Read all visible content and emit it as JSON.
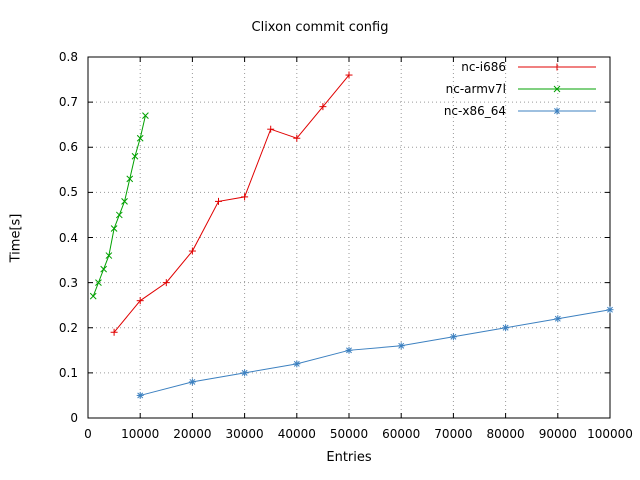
{
  "chart_data": {
    "type": "line",
    "title": "Clixon commit config",
    "xlabel": "Entries",
    "ylabel": "Time[s]",
    "xlim": [
      0,
      100000
    ],
    "ylim": [
      0,
      0.8
    ],
    "xticks": [
      0,
      10000,
      20000,
      30000,
      40000,
      50000,
      60000,
      70000,
      80000,
      90000,
      100000
    ],
    "yticks": [
      0,
      0.1,
      0.2,
      0.3,
      0.4,
      0.5,
      0.6,
      0.7,
      0.8
    ],
    "grid": "dotted",
    "legend_position": "top-right-inside",
    "colors": {
      "grid": "#9a9a9a",
      "border": "#000000",
      "background": "#ffffff"
    },
    "series": [
      {
        "name": "nc-i686",
        "color": "#e00000",
        "marker": "plus",
        "points": [
          [
            5000,
            0.19
          ],
          [
            10000,
            0.26
          ],
          [
            15000,
            0.3
          ],
          [
            20000,
            0.37
          ],
          [
            25000,
            0.48
          ],
          [
            30000,
            0.49
          ],
          [
            35000,
            0.64
          ],
          [
            40000,
            0.62
          ],
          [
            45000,
            0.69
          ],
          [
            50000,
            0.76
          ]
        ]
      },
      {
        "name": "nc-armv7l",
        "color": "#00a000",
        "marker": "cross",
        "points": [
          [
            1000,
            0.27
          ],
          [
            2000,
            0.3
          ],
          [
            3000,
            0.33
          ],
          [
            4000,
            0.36
          ],
          [
            5000,
            0.42
          ],
          [
            6000,
            0.45
          ],
          [
            7000,
            0.48
          ],
          [
            8000,
            0.53
          ],
          [
            9000,
            0.58
          ],
          [
            10000,
            0.62
          ],
          [
            11000,
            0.67
          ]
        ]
      },
      {
        "name": "nc-x86_64",
        "color": "#3c80c0",
        "marker": "asterisk",
        "points": [
          [
            10000,
            0.05
          ],
          [
            20000,
            0.08
          ],
          [
            30000,
            0.1
          ],
          [
            40000,
            0.12
          ],
          [
            50000,
            0.15
          ],
          [
            60000,
            0.16
          ],
          [
            70000,
            0.18
          ],
          [
            80000,
            0.2
          ],
          [
            90000,
            0.22
          ],
          [
            100000,
            0.24
          ]
        ]
      }
    ]
  }
}
